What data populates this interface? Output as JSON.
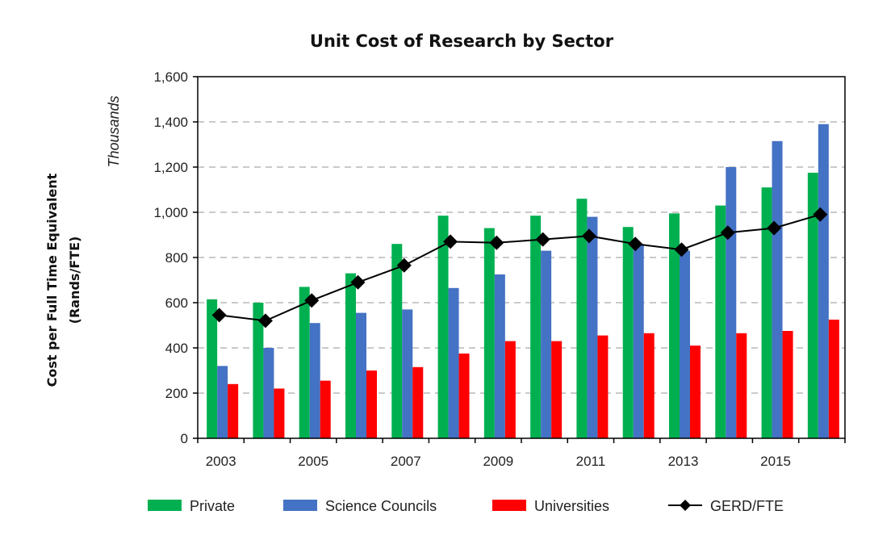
{
  "chart_data": {
    "type": "bar",
    "title": "Unit Cost of Research by Sector",
    "ylabel_line1": "Cost per Full Time Equivalent",
    "ylabel_line2": "(Rands/FTE)",
    "y_units_label": "Thousands",
    "xlabel": "",
    "ylim": [
      0,
      1600
    ],
    "yticks": [
      0,
      200,
      400,
      600,
      800,
      1000,
      1200,
      1400,
      1600
    ],
    "ytick_labels": [
      "0",
      "200",
      "400",
      "600",
      "800",
      "1,000",
      "1,200",
      "1,400",
      "1,600"
    ],
    "grid": true,
    "categories": [
      "2003",
      "2004",
      "2005",
      "2006",
      "2007",
      "2008",
      "2009",
      "2010",
      "2011",
      "2012",
      "2013",
      "2014",
      "2015",
      "2016"
    ],
    "xtick_labels": [
      "2003",
      "",
      "2005",
      "",
      "2007",
      "",
      "2009",
      "",
      "2011",
      "",
      "2013",
      "",
      "2015",
      ""
    ],
    "series": [
      {
        "name": "Private",
        "kind": "bar",
        "color": "#00B050",
        "values": [
          615,
          600,
          670,
          730,
          860,
          985,
          930,
          985,
          1060,
          935,
          995,
          1030,
          1110,
          1175
        ]
      },
      {
        "name": "Science Councils",
        "kind": "bar",
        "color": "#4472C4",
        "values": [
          320,
          400,
          510,
          555,
          570,
          665,
          725,
          830,
          980,
          860,
          830,
          1200,
          1315,
          1390
        ]
      },
      {
        "name": "Universities",
        "kind": "bar",
        "color": "#FF0000",
        "values": [
          240,
          220,
          255,
          300,
          315,
          375,
          430,
          430,
          455,
          465,
          410,
          465,
          475,
          525
        ]
      },
      {
        "name": "GERD/FTE",
        "kind": "line",
        "color": "#000000",
        "values": [
          545,
          520,
          610,
          690,
          765,
          870,
          865,
          880,
          895,
          860,
          835,
          910,
          930,
          990
        ]
      }
    ],
    "legend_position": "bottom"
  }
}
